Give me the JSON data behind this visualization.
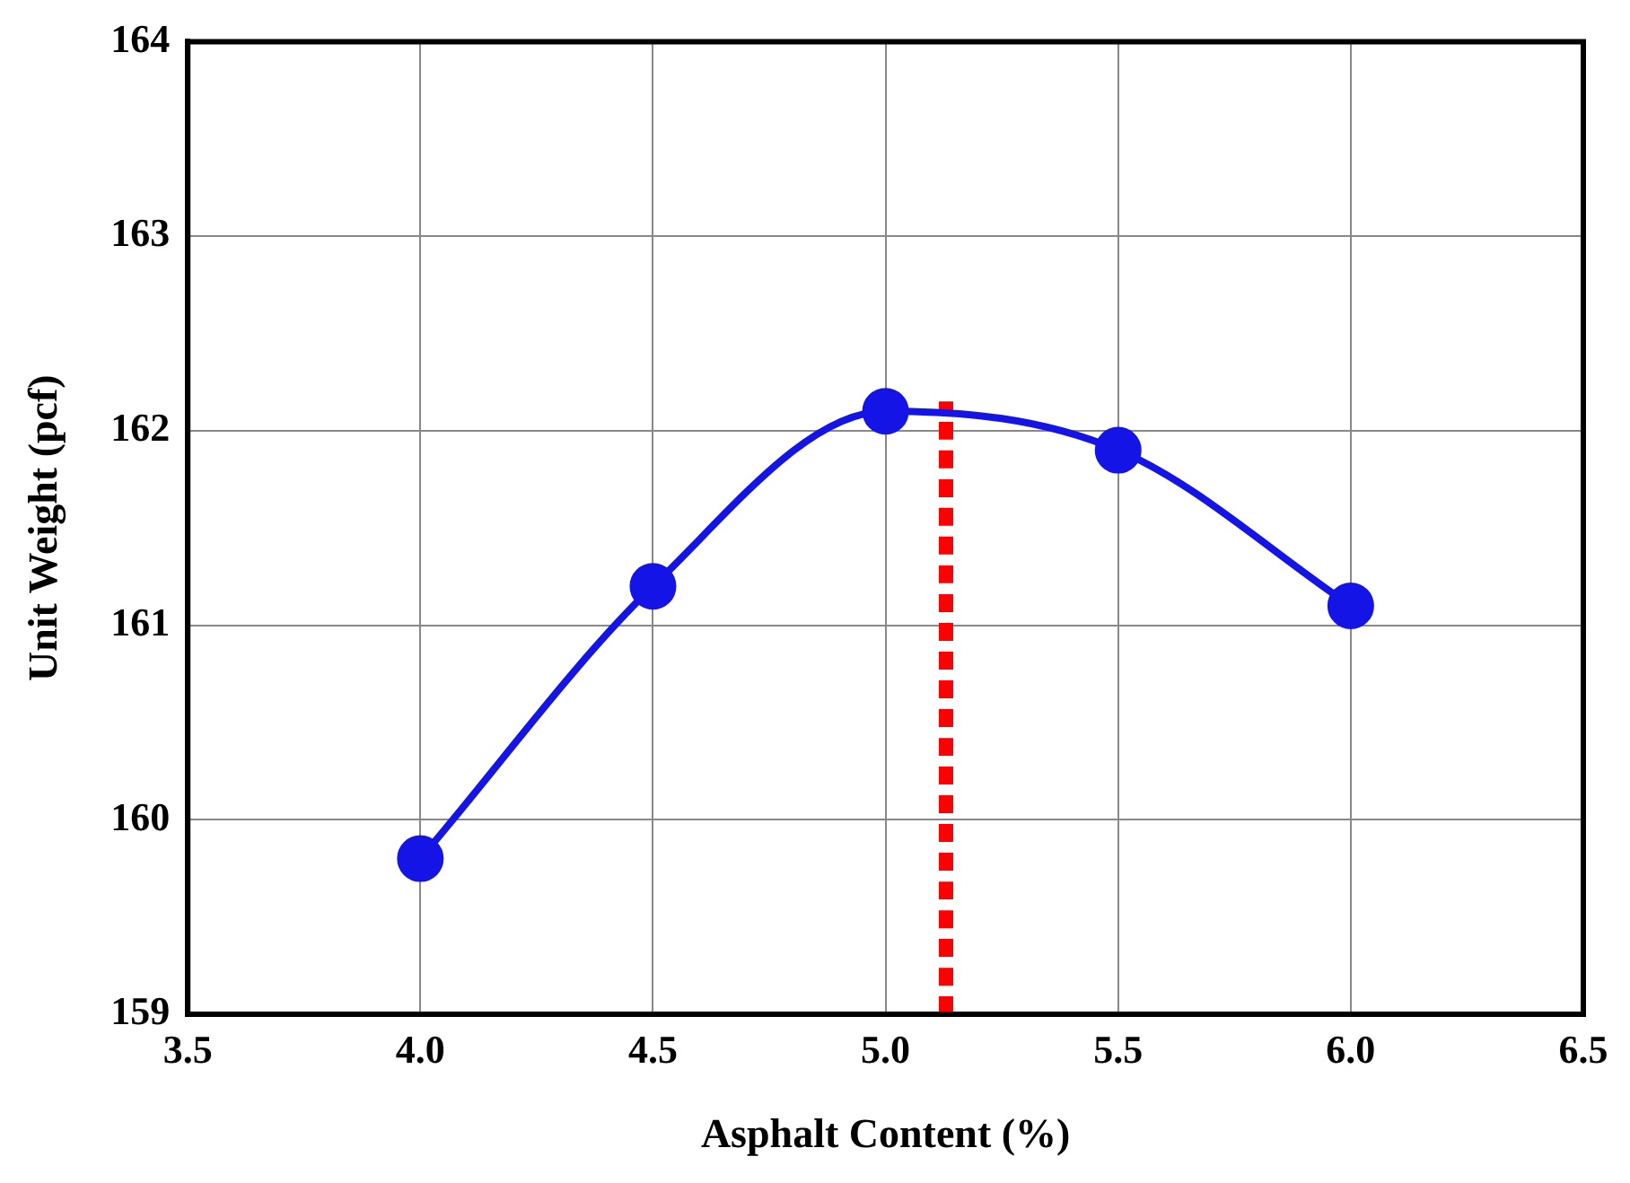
{
  "chart_data": {
    "type": "line",
    "xlabel": "Asphalt Content (%)",
    "ylabel": "Unit Weight (pcf)",
    "xlim": [
      3.5,
      6.5
    ],
    "xticks": [
      {
        "value": 3.5,
        "label": "3.5"
      },
      {
        "value": 4,
        "label": "4.0"
      },
      {
        "value": 4.5,
        "label": "4.5"
      },
      {
        "value": 5,
        "label": "5.0"
      },
      {
        "value": 5.5,
        "label": "5.5"
      },
      {
        "value": 6,
        "label": "6.0"
      },
      {
        "value": 6.5,
        "label": "6.5"
      }
    ],
    "ylim": [
      159,
      164
    ],
    "yticks": [
      159,
      160,
      161,
      162,
      163,
      164
    ],
    "grid": true,
    "legend": false,
    "series": [
      {
        "color": "#1414e6",
        "x": [
          4.0,
          4.5,
          5.0,
          5.5,
          6.0
        ],
        "values": [
          159.8,
          161.2,
          162.1,
          161.9,
          161.1
        ],
        "marker": "circle",
        "line_style": "solid"
      },
      {
        "color": "#ff0000",
        "x": [
          5.13,
          5.13
        ],
        "values": [
          159,
          162.15
        ],
        "marker": "none",
        "line_style": "dashed"
      }
    ]
  }
}
